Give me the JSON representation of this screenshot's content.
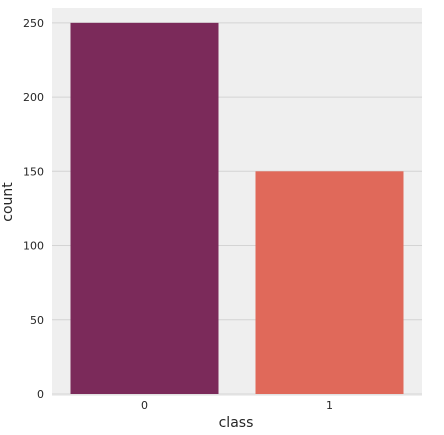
{
  "chart_data": {
    "type": "bar",
    "title": "",
    "xlabel": "class",
    "ylabel": "count",
    "categories": [
      "0",
      "1"
    ],
    "values": [
      250,
      150
    ],
    "colors": [
      "#7b2a5a",
      "#e0695a"
    ],
    "yticks": [
      "0",
      "50",
      "100",
      "150",
      "200",
      "250"
    ],
    "ylim": [
      0,
      260
    ],
    "grid": true,
    "legend": "none",
    "background": "#efefef"
  }
}
